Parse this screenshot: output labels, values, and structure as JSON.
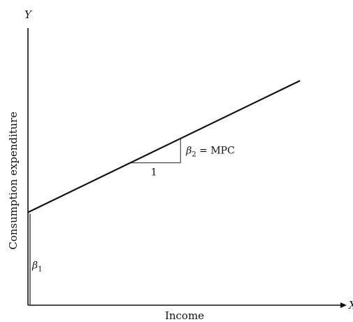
{
  "chart_data": {
    "type": "line",
    "title": "",
    "xlabel": "Income",
    "ylabel": "Consumption expenditure",
    "x_axis_letter": "X",
    "y_axis_letter": "Y",
    "xlim": [
      0,
      10
    ],
    "ylim": [
      0,
      10
    ],
    "grid": false,
    "legend": "none",
    "series": [
      {
        "x": [
          0,
          8.65
        ],
        "y": [
          3.35,
          8.1
        ]
      }
    ],
    "intercept": {
      "symbol": "β",
      "subscript": "1",
      "value": 3.35
    },
    "slope_triangle": {
      "run_label": "1",
      "x_start": 3.25,
      "x_end": 4.85,
      "slope_symbol": "β",
      "slope_subscript": "2",
      "slope_suffix": " = MPC"
    },
    "colors": {
      "line": "#111111",
      "axes": "#111111",
      "triangle": "#222222"
    }
  }
}
